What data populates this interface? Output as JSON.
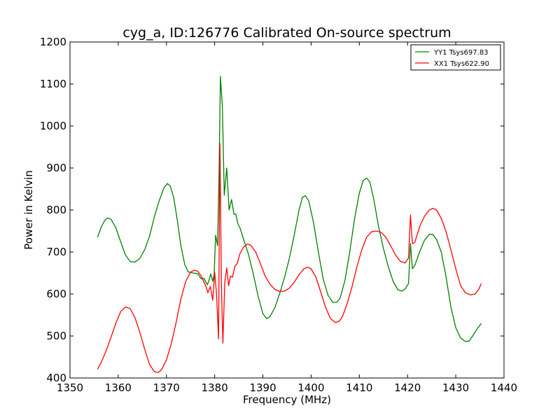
{
  "chart_data": {
    "type": "line",
    "title": "cyg_a, ID:126776 Calibrated On-source spectrum",
    "xlabel": "Frequency (MHz)",
    "ylabel": "Power in Kelvin",
    "xlim": [
      1350,
      1440
    ],
    "ylim": [
      400,
      1200
    ],
    "xticks": [
      1350,
      1360,
      1370,
      1380,
      1390,
      1400,
      1410,
      1420,
      1430,
      1440
    ],
    "yticks": [
      400,
      500,
      600,
      700,
      800,
      900,
      1000,
      1100,
      1200
    ],
    "grid": false,
    "legend_position": "top-right",
    "series": [
      {
        "name": "YY1 Tsys697.83",
        "color": "#008000",
        "points": [
          [
            1355.7,
            735
          ],
          [
            1356.5,
            760
          ],
          [
            1357.2,
            775
          ],
          [
            1357.8,
            781
          ],
          [
            1358.5,
            778
          ],
          [
            1359.5,
            758
          ],
          [
            1360.5,
            725
          ],
          [
            1361.5,
            693
          ],
          [
            1362.5,
            677
          ],
          [
            1363.5,
            676
          ],
          [
            1364.5,
            685
          ],
          [
            1365.5,
            706
          ],
          [
            1366.5,
            738
          ],
          [
            1367.5,
            784
          ],
          [
            1368.5,
            822
          ],
          [
            1369.5,
            853
          ],
          [
            1370.2,
            863
          ],
          [
            1370.8,
            857
          ],
          [
            1371.5,
            830
          ],
          [
            1372.2,
            780
          ],
          [
            1373,
            715
          ],
          [
            1373.8,
            670
          ],
          [
            1374.5,
            653
          ],
          [
            1375.5,
            650
          ],
          [
            1376.5,
            648
          ],
          [
            1377.2,
            636
          ],
          [
            1377.8,
            637
          ],
          [
            1378.2,
            628
          ],
          [
            1378.5,
            622
          ],
          [
            1378.8,
            632
          ],
          [
            1379.2,
            648
          ],
          [
            1379.6,
            630
          ],
          [
            1379.9,
            648
          ],
          [
            1380.2,
            740
          ],
          [
            1380.6,
            715
          ],
          [
            1380.9,
            885
          ],
          [
            1381.2,
            1118
          ],
          [
            1381.6,
            1045
          ],
          [
            1382,
            835
          ],
          [
            1382.5,
            900
          ],
          [
            1383,
            800
          ],
          [
            1383.5,
            825
          ],
          [
            1384,
            790
          ],
          [
            1384.4,
            790
          ],
          [
            1384.8,
            768
          ],
          [
            1385.3,
            756
          ],
          [
            1386,
            730
          ],
          [
            1387,
            695
          ],
          [
            1388,
            648
          ],
          [
            1389,
            595
          ],
          [
            1390,
            553
          ],
          [
            1390.8,
            541
          ],
          [
            1391.5,
            547
          ],
          [
            1392.5,
            568
          ],
          [
            1393.5,
            602
          ],
          [
            1394.5,
            640
          ],
          [
            1395.5,
            685
          ],
          [
            1396.5,
            740
          ],
          [
            1397.5,
            800
          ],
          [
            1398.2,
            830
          ],
          [
            1398.8,
            834
          ],
          [
            1399.5,
            822
          ],
          [
            1400.5,
            770
          ],
          [
            1401.5,
            700
          ],
          [
            1402.5,
            636
          ],
          [
            1403.5,
            597
          ],
          [
            1404.5,
            580
          ],
          [
            1405.3,
            580
          ],
          [
            1406,
            590
          ],
          [
            1407,
            632
          ],
          [
            1408,
            700
          ],
          [
            1409,
            778
          ],
          [
            1410,
            840
          ],
          [
            1410.8,
            870
          ],
          [
            1411.5,
            876
          ],
          [
            1412.2,
            866
          ],
          [
            1413,
            825
          ],
          [
            1414,
            760
          ],
          [
            1415,
            708
          ],
          [
            1416,
            665
          ],
          [
            1417,
            630
          ],
          [
            1418,
            610
          ],
          [
            1418.8,
            607
          ],
          [
            1419.5,
            612
          ],
          [
            1420.2,
            625
          ],
          [
            1420.6,
            720
          ],
          [
            1421,
            660
          ],
          [
            1421.5,
            668
          ],
          [
            1422.5,
            700
          ],
          [
            1423.5,
            728
          ],
          [
            1424.5,
            742
          ],
          [
            1425.2,
            742
          ],
          [
            1426,
            730
          ],
          [
            1427,
            700
          ],
          [
            1428,
            640
          ],
          [
            1429,
            568
          ],
          [
            1430,
            520
          ],
          [
            1431,
            495
          ],
          [
            1432,
            487
          ],
          [
            1432.8,
            488
          ],
          [
            1433.5,
            500
          ],
          [
            1434.5,
            518
          ],
          [
            1435.3,
            530
          ]
        ]
      },
      {
        "name": "XX1 Tsys622.90",
        "color": "#ff0000",
        "points": [
          [
            1355.7,
            421
          ],
          [
            1356.5,
            438
          ],
          [
            1357.5,
            465
          ],
          [
            1358.5,
            497
          ],
          [
            1359.5,
            530
          ],
          [
            1360.5,
            558
          ],
          [
            1361.5,
            569
          ],
          [
            1362.5,
            565
          ],
          [
            1363.5,
            543
          ],
          [
            1364.5,
            508
          ],
          [
            1365.5,
            468
          ],
          [
            1366.5,
            432
          ],
          [
            1367.5,
            415
          ],
          [
            1368.3,
            413
          ],
          [
            1369,
            420
          ],
          [
            1370,
            443
          ],
          [
            1371,
            482
          ],
          [
            1372,
            532
          ],
          [
            1373,
            588
          ],
          [
            1374,
            630
          ],
          [
            1375,
            652
          ],
          [
            1375.8,
            657
          ],
          [
            1376.5,
            654
          ],
          [
            1377.2,
            643
          ],
          [
            1377.8,
            628
          ],
          [
            1378.2,
            618
          ],
          [
            1378.6,
            603
          ],
          [
            1379.1,
            618
          ],
          [
            1379.6,
            585
          ],
          [
            1380,
            652
          ],
          [
            1380.4,
            598
          ],
          [
            1380.8,
            493
          ],
          [
            1381.1,
            958
          ],
          [
            1381.4,
            620
          ],
          [
            1381.7,
            483
          ],
          [
            1382.1,
            628
          ],
          [
            1382.5,
            662
          ],
          [
            1382.9,
            620
          ],
          [
            1383.3,
            643
          ],
          [
            1383.7,
            640
          ],
          [
            1384.2,
            666
          ],
          [
            1384.7,
            673
          ],
          [
            1385.2,
            695
          ],
          [
            1386,
            712
          ],
          [
            1386.8,
            719
          ],
          [
            1387.5,
            716
          ],
          [
            1388.5,
            700
          ],
          [
            1389.5,
            672
          ],
          [
            1390.5,
            642
          ],
          [
            1391.5,
            623
          ],
          [
            1392.5,
            611
          ],
          [
            1393.5,
            606
          ],
          [
            1394.5,
            607
          ],
          [
            1395.5,
            614
          ],
          [
            1396.5,
            628
          ],
          [
            1397.5,
            646
          ],
          [
            1398.5,
            660
          ],
          [
            1399.3,
            664
          ],
          [
            1400,
            660
          ],
          [
            1401,
            640
          ],
          [
            1402,
            605
          ],
          [
            1403,
            568
          ],
          [
            1404,
            542
          ],
          [
            1405,
            532
          ],
          [
            1405.8,
            535
          ],
          [
            1406.5,
            546
          ],
          [
            1407.5,
            578
          ],
          [
            1408.5,
            618
          ],
          [
            1409.5,
            665
          ],
          [
            1410.5,
            705
          ],
          [
            1411.5,
            735
          ],
          [
            1412.5,
            748
          ],
          [
            1413.5,
            750
          ],
          [
            1414.5,
            747
          ],
          [
            1415.5,
            735
          ],
          [
            1416.5,
            715
          ],
          [
            1417.5,
            693
          ],
          [
            1418.5,
            678
          ],
          [
            1419.5,
            674
          ],
          [
            1420.2,
            686
          ],
          [
            1420.6,
            788
          ],
          [
            1421,
            720
          ],
          [
            1421.5,
            723
          ],
          [
            1422.5,
            760
          ],
          [
            1423.5,
            785
          ],
          [
            1424.5,
            800
          ],
          [
            1425.3,
            804
          ],
          [
            1426,
            800
          ],
          [
            1427,
            780
          ],
          [
            1428,
            748
          ],
          [
            1429,
            705
          ],
          [
            1430,
            660
          ],
          [
            1431,
            620
          ],
          [
            1432,
            603
          ],
          [
            1433,
            598
          ],
          [
            1434,
            600
          ],
          [
            1434.8,
            612
          ],
          [
            1435.3,
            625
          ]
        ]
      }
    ]
  }
}
